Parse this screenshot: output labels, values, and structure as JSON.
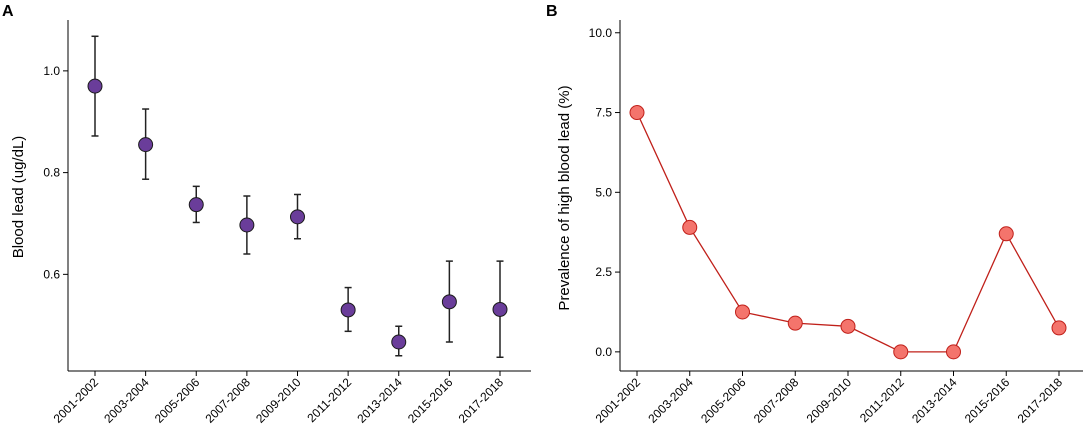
{
  "chart_data": [
    {
      "panel": "A",
      "type": "scatter",
      "title": "",
      "xlabel": "",
      "ylabel": "Blood lead (ug/dL)",
      "categories": [
        "2001-2002",
        "2003-2004",
        "2005-2006",
        "2007-2008",
        "2009-2010",
        "2011-2012",
        "2013-2014",
        "2015-2016",
        "2017-2018"
      ],
      "values": [
        0.97,
        0.855,
        0.737,
        0.697,
        0.713,
        0.53,
        0.467,
        0.546,
        0.531
      ],
      "error_low": [
        0.872,
        0.787,
        0.702,
        0.64,
        0.67,
        0.488,
        0.44,
        0.467,
        0.437
      ],
      "error_high": [
        1.068,
        0.925,
        0.773,
        0.754,
        0.757,
        0.574,
        0.498,
        0.626,
        0.626
      ],
      "yticks": [
        0.6,
        0.8,
        1.0
      ],
      "ytick_labels": [
        "0.6",
        "0.8",
        "1.0"
      ],
      "ylim": [
        0.41,
        1.1
      ],
      "color": "#6a3d9a",
      "grid": false
    },
    {
      "panel": "B",
      "type": "line",
      "title": "",
      "xlabel": "",
      "ylabel": "Prevalence of high blood lead (%)",
      "categories": [
        "2001-2002",
        "2003-2004",
        "2005-2006",
        "2007-2008",
        "2009-2010",
        "2011-2012",
        "2013-2014",
        "2015-2016",
        "2017-2018"
      ],
      "values": [
        7.5,
        3.9,
        1.25,
        0.9,
        0.8,
        0.0,
        0.0,
        3.7,
        0.75
      ],
      "yticks": [
        0.0,
        2.5,
        5.0,
        7.5,
        10.0
      ],
      "ytick_labels": [
        "0.0",
        "2.5",
        "5.0",
        "7.5",
        "10.0"
      ],
      "ylim": [
        -0.6,
        10.4
      ],
      "line_color": "#c0201a",
      "marker_color": "#f4746c",
      "grid": false
    }
  ]
}
